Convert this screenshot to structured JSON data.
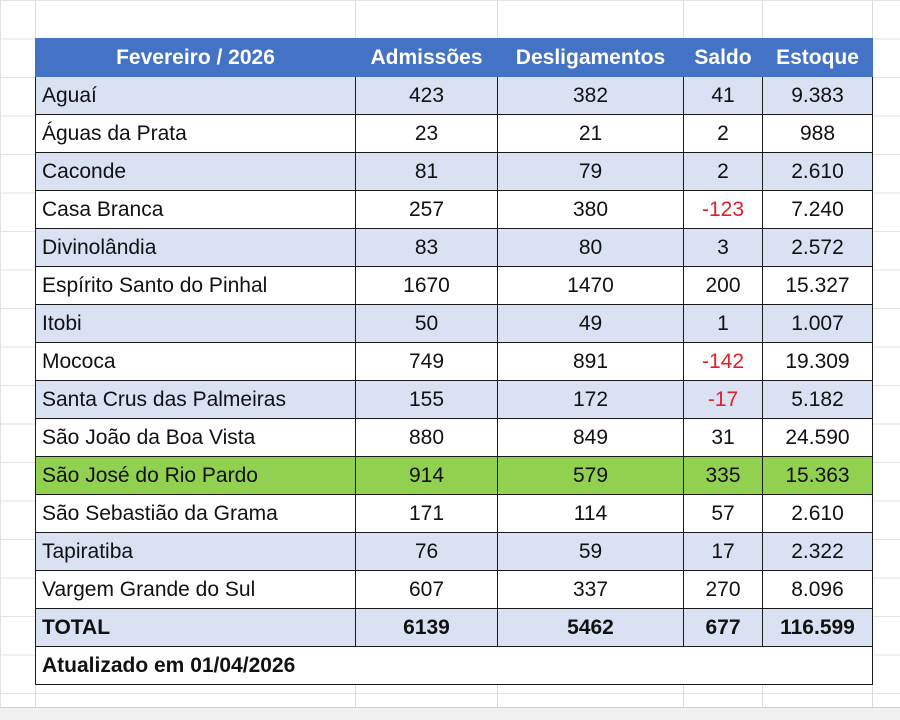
{
  "table": {
    "columns": [
      "Fevereiro / 2026",
      "Admissões",
      "Desligamentos",
      "Saldo",
      "Estoque"
    ],
    "rows": [
      [
        "Aguaí",
        "423",
        "382",
        "41",
        "9.383"
      ],
      [
        "Águas da Prata",
        "23",
        "21",
        "2",
        "988"
      ],
      [
        "Caconde",
        "81",
        "79",
        "2",
        "2.610"
      ],
      [
        "Casa Branca",
        "257",
        "380",
        "-123",
        "7.240"
      ],
      [
        "Divinolândia",
        "83",
        "80",
        "3",
        "2.572"
      ],
      [
        "Espírito Santo do Pinhal",
        "1670",
        "1470",
        "200",
        "15.327"
      ],
      [
        "Itobi",
        "50",
        "49",
        "1",
        "1.007"
      ],
      [
        "Mococa",
        "749",
        "891",
        "-142",
        "19.309"
      ],
      [
        "Santa Crus das Palmeiras",
        "155",
        "172",
        "-17",
        "5.182"
      ],
      [
        "São João da Boa Vista",
        "880",
        "849",
        "31",
        "24.590"
      ],
      [
        "São José do Rio Pardo",
        "914",
        "579",
        "335",
        "15.363"
      ],
      [
        "São Sebastião da Grama",
        "171",
        "114",
        "57",
        "2.610"
      ],
      [
        "Tapiratiba",
        "76",
        "59",
        "17",
        "2.322"
      ],
      [
        "Vargem Grande do Sul",
        "607",
        "337",
        "270",
        "8.096"
      ]
    ],
    "total": [
      "TOTAL",
      "6139",
      "5462",
      "677",
      "116.599"
    ],
    "footer": "Atualizado em 01/04/2026"
  }
}
